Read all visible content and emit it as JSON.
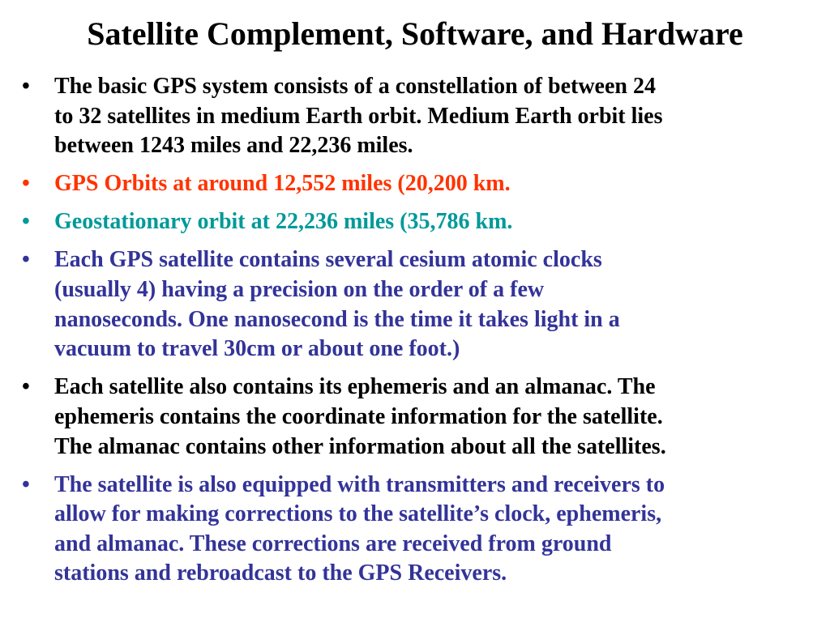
{
  "title": "Satellite Complement, Software, and Hardware",
  "bullet_icon": "bullet-dot",
  "bullets": [
    {
      "color": "#000000",
      "lines": [
        "The basic GPS system consists of a constellation of between 24",
        "to 32 satellites in medium Earth orbit.  Medium Earth orbit lies",
        "between 1243 miles and 22,236 miles."
      ]
    },
    {
      "color": "#ff3300",
      "lines": [
        "GPS Orbits at around 12,552 miles (20,200 km."
      ]
    },
    {
      "color": "#009999",
      "lines": [
        "Geostationary orbit at 22,236 miles (35,786 km."
      ]
    },
    {
      "color": "#333399",
      "lines": [
        "Each GPS satellite contains several cesium atomic clocks",
        "(usually 4) having a precision on the order of a few",
        "nanoseconds.  One nanosecond is the time it takes light in a",
        "vacuum to travel 30cm or about one foot.)"
      ]
    },
    {
      "color": "#000000",
      "lines": [
        "Each satellite also contains its ephemeris and an almanac.  The",
        "ephemeris contains the coordinate information for the satellite.",
        "The almanac contains other information about all the satellites."
      ]
    },
    {
      "color": "#333399",
      "lines": [
        "The satellite is also equipped with transmitters and receivers to",
        "allow for making corrections to the satellite’s clock, ephemeris,",
        "and almanac.  These corrections are received from ground",
        "stations and rebroadcast to the GPS Receivers."
      ]
    }
  ]
}
